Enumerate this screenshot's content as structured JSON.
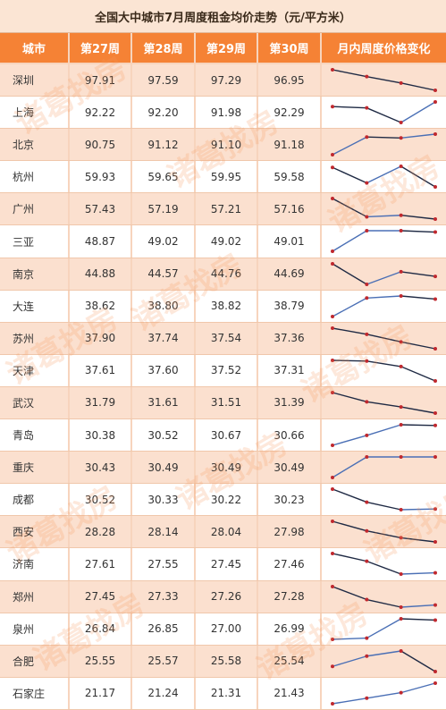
{
  "title": "全国大中城市7月周度租金均价走势（元/平方米）",
  "header": {
    "city": "城市",
    "weeks": [
      "第27周",
      "第28周",
      "第29周",
      "第30周"
    ],
    "trend": "月内周度价格变化"
  },
  "watermark": "诸葛找房",
  "colors": {
    "header_bg": "#f58235",
    "up_line": "#4a6fb5",
    "down_line": "#1f2a44",
    "point": "#c0282e"
  },
  "chart_data": {
    "type": "table",
    "title": "全国大中城市7月周度租金均价走势（元/平方米）",
    "columns": [
      "第27周",
      "第28周",
      "第29周",
      "第30周"
    ],
    "rows": [
      {
        "city": "深圳",
        "values": [
          97.91,
          97.59,
          97.29,
          96.95
        ],
        "cells": [
          "97.91",
          "97.59",
          "97.29",
          "96.95"
        ]
      },
      {
        "city": "上海",
        "values": [
          92.22,
          92.2,
          91.98,
          92.29
        ],
        "cells": [
          "92.22",
          "92.20",
          "91.98",
          "92.29"
        ]
      },
      {
        "city": "北京",
        "values": [
          90.75,
          91.12,
          91.1,
          91.18
        ],
        "cells": [
          "90.75",
          "91.12",
          "91.10",
          "91.18"
        ]
      },
      {
        "city": "杭州",
        "values": [
          59.93,
          59.65,
          59.95,
          59.58
        ],
        "cells": [
          "59.93",
          "59.65",
          "59.95",
          "59.58"
        ]
      },
      {
        "city": "广州",
        "values": [
          57.43,
          57.19,
          57.21,
          57.16
        ],
        "cells": [
          "57.43",
          "57.19",
          "57.21",
          "57.16"
        ]
      },
      {
        "city": "三亚",
        "values": [
          48.87,
          49.02,
          49.02,
          49.01
        ],
        "cells": [
          "48.87",
          "49.02",
          "49.02",
          "49.01"
        ]
      },
      {
        "city": "南京",
        "values": [
          44.88,
          44.57,
          44.76,
          44.69
        ],
        "cells": [
          "44.88",
          "44.57",
          "44.76",
          "44.69"
        ]
      },
      {
        "city": "大连",
        "values": [
          38.62,
          38.8,
          38.82,
          38.79
        ],
        "cells": [
          "38.62",
          "38.80",
          "38.82",
          "38.79"
        ]
      },
      {
        "city": "苏州",
        "values": [
          37.9,
          37.74,
          37.54,
          37.36
        ],
        "cells": [
          "37.90",
          "37.74",
          "37.54",
          "37.36"
        ]
      },
      {
        "city": "天津",
        "values": [
          37.61,
          37.6,
          37.52,
          37.31
        ],
        "cells": [
          "37.61",
          "37.60",
          "37.52",
          "37.31"
        ]
      },
      {
        "city": "武汉",
        "values": [
          31.79,
          31.61,
          31.51,
          31.39
        ],
        "cells": [
          "31.79",
          "31.61",
          "31.51",
          "31.39"
        ]
      },
      {
        "city": "青岛",
        "values": [
          30.38,
          30.52,
          30.67,
          30.66
        ],
        "cells": [
          "30.38",
          "30.52",
          "30.67",
          "30.66"
        ]
      },
      {
        "city": "重庆",
        "values": [
          30.43,
          30.49,
          30.49,
          30.49
        ],
        "cells": [
          "30.43",
          "30.49",
          "30.49",
          "30.49"
        ]
      },
      {
        "city": "成都",
        "values": [
          30.52,
          30.33,
          30.22,
          30.23
        ],
        "cells": [
          "30.52",
          "30.33",
          "30.22",
          "30.23"
        ]
      },
      {
        "city": "西安",
        "values": [
          28.28,
          28.14,
          28.04,
          27.98
        ],
        "cells": [
          "28.28",
          "28.14",
          "28.04",
          "27.98"
        ]
      },
      {
        "city": "济南",
        "values": [
          27.61,
          27.55,
          27.45,
          27.46
        ],
        "cells": [
          "27.61",
          "27.55",
          "27.45",
          "27.46"
        ]
      },
      {
        "city": "郑州",
        "values": [
          27.45,
          27.33,
          27.26,
          27.28
        ],
        "cells": [
          "27.45",
          "27.33",
          "27.26",
          "27.28"
        ]
      },
      {
        "city": "泉州",
        "values": [
          26.84,
          26.85,
          27.0,
          26.99
        ],
        "cells": [
          "26.84",
          "26.85",
          "27.00",
          "26.99"
        ]
      },
      {
        "city": "合肥",
        "values": [
          25.55,
          25.57,
          25.58,
          25.54
        ],
        "cells": [
          "25.55",
          "25.57",
          "25.58",
          "25.54"
        ]
      },
      {
        "city": "石家庄",
        "values": [
          21.17,
          21.24,
          21.31,
          21.43
        ],
        "cells": [
          "21.17",
          "21.24",
          "21.31",
          "21.43"
        ]
      }
    ]
  }
}
